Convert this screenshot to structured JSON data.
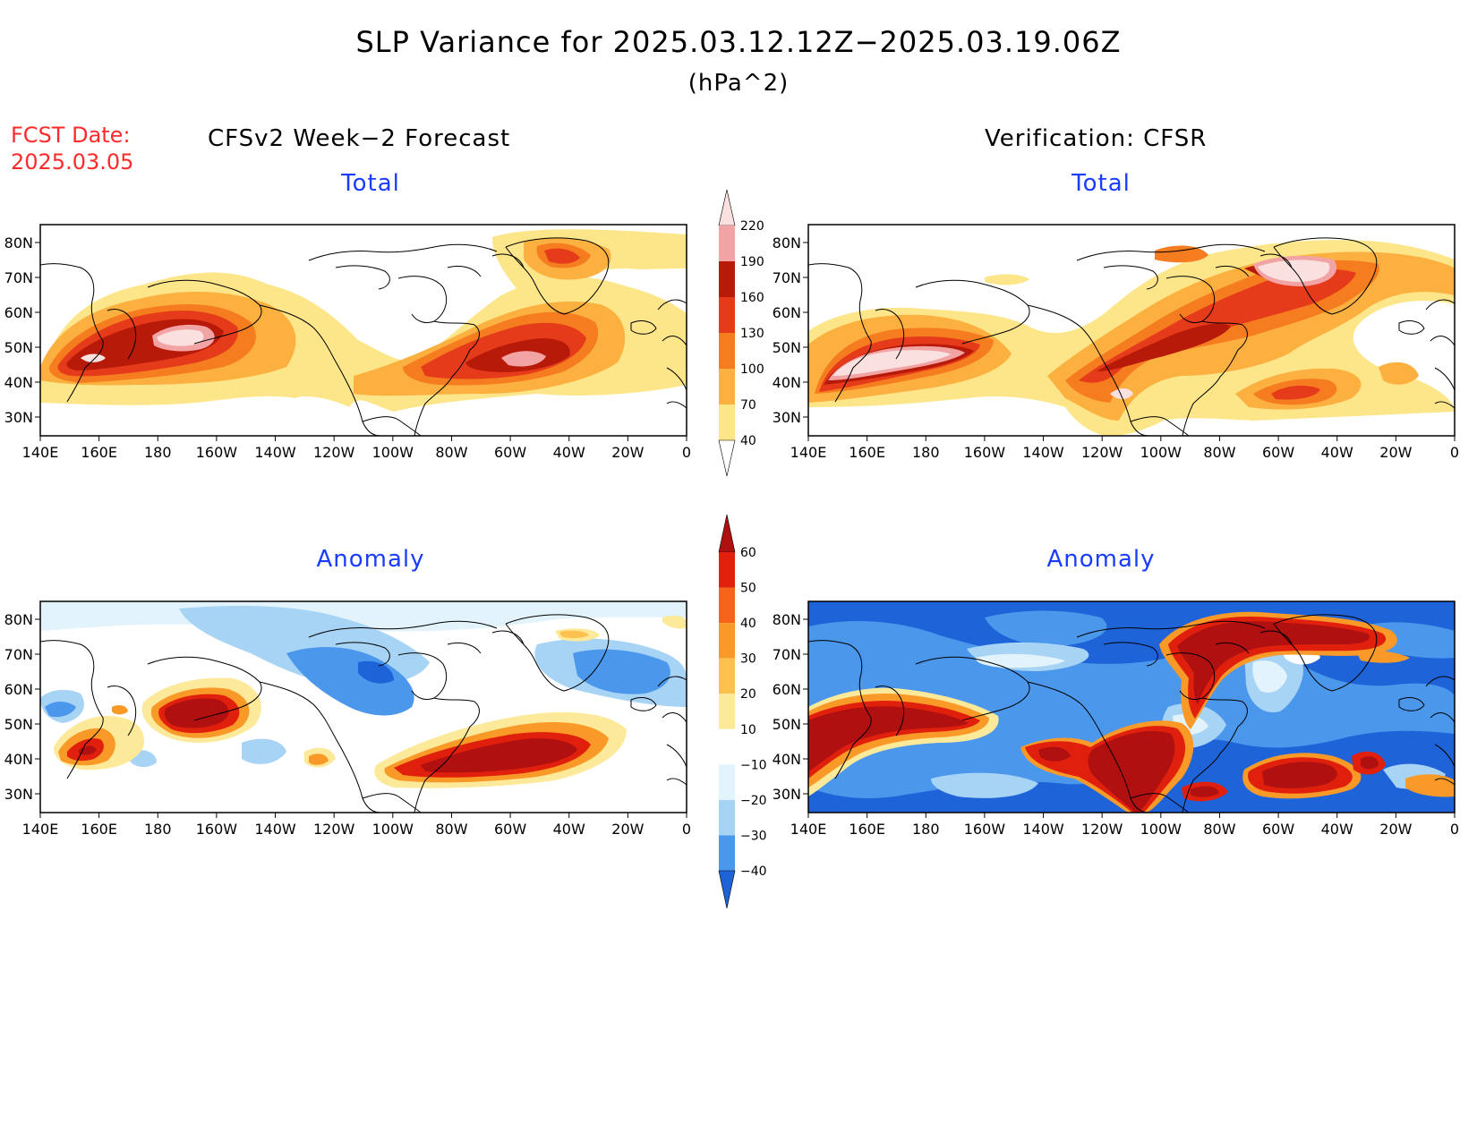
{
  "title": "SLP Variance for 2025.03.12.12Z−2025.03.19.06Z",
  "units": "(hPa^2)",
  "forecast_date": {
    "label": "FCST Date:",
    "value": "2025.03.05"
  },
  "columns": {
    "left": "CFSv2 Week−2 Forecast",
    "right": "Verification: CFSR"
  },
  "panels": {
    "forecast_total": "Total",
    "verification_total": "Total",
    "forecast_anomaly": "Anomaly",
    "verification_anomaly": "Anomaly"
  },
  "axes": {
    "lon_labels": [
      "140E",
      "160E",
      "180",
      "160W",
      "140W",
      "120W",
      "100W",
      "80W",
      "60W",
      "40W",
      "20W",
      "0"
    ],
    "lat_labels": [
      "80N",
      "70N",
      "60N",
      "50N",
      "40N",
      "30N"
    ]
  },
  "colorbars": {
    "total": {
      "levels": [
        "40",
        "70",
        "100",
        "130",
        "160",
        "190",
        "220"
      ],
      "colors": [
        "#fde68a",
        "#fbb040",
        "#f57c1f",
        "#e63b1a",
        "#b81a0a",
        "#f2a3a3",
        "#fbe0e0"
      ]
    },
    "anomaly": {
      "levels": [
        "60",
        "50",
        "40",
        "30",
        "20",
        "10",
        "−10",
        "−20",
        "−30",
        "−40"
      ],
      "colors": [
        "#b01010",
        "#e0200d",
        "#f5641a",
        "#f99a28",
        "#fdc150",
        "#fde99a",
        "#ffffff",
        "#e3f3fc",
        "#a7d3f5",
        "#4a97ec",
        "#1f63d8"
      ]
    }
  }
}
